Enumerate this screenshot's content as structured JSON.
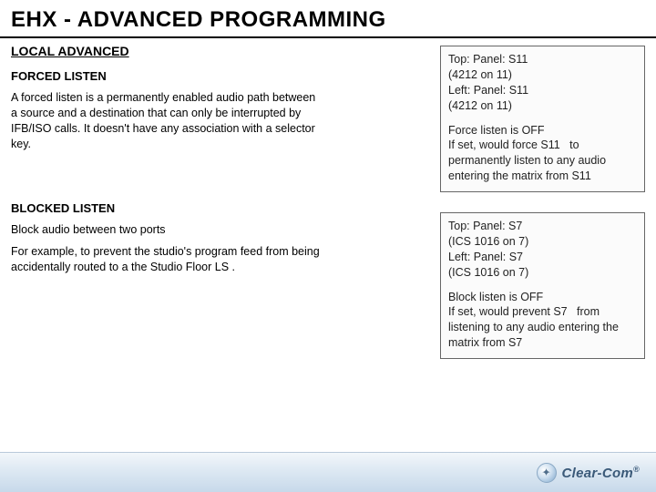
{
  "title": "EHX - ADVANCED PROGRAMMING",
  "section_heading": "LOCAL ADVANCED",
  "forced": {
    "heading": "FORCED LISTEN",
    "body": "A forced listen is a permanently enabled audio path between a source and a destination that can only be interrupted by IFB/ISO calls. It  doesn't have any association with a selector key."
  },
  "blocked": {
    "heading": "BLOCKED LISTEN",
    "body1": "Block audio between two ports",
    "body2": "For example, to prevent the studio's program feed from being accidentally routed to a the Studio Floor LS ."
  },
  "box1": {
    "l1": "Top: Panel: S11",
    "l2": "(4212 on 11)",
    "l3": "Left: Panel: S11",
    "l4": "(4212 on 11)",
    "l5": "Force listen is OFF",
    "l6": "If set, would force S11   to permanently listen to any audio entering the matrix from S11"
  },
  "box2": {
    "l1": "Top: Panel: S7",
    "l2": "(ICS 1016 on 7)",
    "l3": "Left: Panel: S7",
    "l4": "(ICS 1016 on 7)",
    "l5": "Block listen is OFF",
    "l6": "If set, would prevent S7   from listening to any audio entering the matrix from S7"
  },
  "footer": {
    "brand": "Clear-Com",
    "reg": "®"
  },
  "colors": {
    "footer_gradient_top": "#f2f6fa",
    "footer_gradient_mid": "#dbe7f2",
    "footer_gradient_bot": "#c7d9ea",
    "logo_text": "#3b5a79"
  }
}
